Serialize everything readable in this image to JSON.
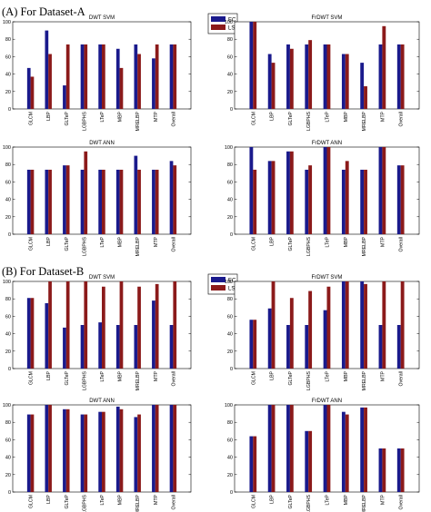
{
  "sections": [
    {
      "label": "(A)  For Dataset-A"
    },
    {
      "label": "(B)  For Dataset-B"
    }
  ],
  "legend": {
    "items": [
      "EC",
      "LS"
    ],
    "colors": [
      "#1a1a8c",
      "#8b1a1a"
    ]
  },
  "chart_data": [
    {
      "type": "bar",
      "title": "DWT SVM",
      "section": "A",
      "categories": [
        "GLCM",
        "LBP",
        "GLTeP",
        "LGBPHS",
        "LTeP",
        "MBP",
        "MRELBP",
        "MTP",
        "Overall"
      ],
      "series": [
        {
          "name": "EC",
          "values": [
            47,
            90,
            27,
            74,
            74,
            69,
            74,
            58,
            74
          ]
        },
        {
          "name": "LS",
          "values": [
            37,
            63,
            74,
            74,
            74,
            47,
            63,
            74,
            74
          ]
        }
      ],
      "ylim": [
        0,
        100
      ],
      "yticks": [
        0,
        20,
        40,
        60,
        80,
        100
      ]
    },
    {
      "type": "bar",
      "title": "FrDWT SVM",
      "section": "A",
      "categories": [
        "GLCM",
        "LBP",
        "GLTeP",
        "LGBPHS",
        "LTeP",
        "MBP",
        "MRELBP",
        "MTP",
        "Overall"
      ],
      "series": [
        {
          "name": "EC",
          "values": [
            100,
            63,
            74,
            74,
            74,
            63,
            53,
            74,
            74
          ]
        },
        {
          "name": "LS",
          "values": [
            100,
            53,
            69,
            79,
            74,
            63,
            26,
            95,
            74
          ]
        }
      ],
      "ylim": [
        0,
        100
      ],
      "yticks": [
        0,
        20,
        40,
        60,
        80,
        100
      ]
    },
    {
      "type": "bar",
      "title": "DWT ANN",
      "section": "A",
      "categories": [
        "GLCM",
        "LBP",
        "GLTeP",
        "LGBPHS",
        "LTeP",
        "MBP",
        "MRELBP",
        "MTP",
        "Overall"
      ],
      "series": [
        {
          "name": "EC",
          "values": [
            74,
            74,
            79,
            74,
            74,
            74,
            90,
            74,
            84
          ]
        },
        {
          "name": "LS",
          "values": [
            74,
            74,
            79,
            95,
            74,
            74,
            74,
            74,
            79
          ]
        }
      ],
      "ylim": [
        0,
        100
      ],
      "yticks": [
        0,
        20,
        40,
        60,
        80,
        100
      ]
    },
    {
      "type": "bar",
      "title": "FrDWT ANN",
      "section": "A",
      "categories": [
        "GLCM",
        "LBP",
        "GLTeP",
        "LGBPHS",
        "LTeP",
        "MBP",
        "MRELBP",
        "MTP",
        "Overall"
      ],
      "series": [
        {
          "name": "EC",
          "values": [
            100,
            84,
            95,
            74,
            100,
            74,
            74,
            100,
            79
          ]
        },
        {
          "name": "LS",
          "values": [
            74,
            84,
            95,
            79,
            100,
            84,
            74,
            100,
            79
          ]
        }
      ],
      "ylim": [
        0,
        100
      ],
      "yticks": [
        0,
        20,
        40,
        60,
        80,
        100
      ]
    },
    {
      "type": "bar",
      "title": "DWT SVM",
      "section": "B",
      "categories": [
        "GLCM",
        "LBP",
        "GLTeP",
        "LGBPHS",
        "LTeP",
        "MBP",
        "MRELBP",
        "MTP",
        "Overall"
      ],
      "series": [
        {
          "name": "EC",
          "values": [
            81,
            75,
            47,
            50,
            53,
            50,
            50,
            78,
            50
          ]
        },
        {
          "name": "LS",
          "values": [
            81,
            100,
            100,
            100,
            94,
            100,
            94,
            97,
            100
          ]
        }
      ],
      "ylim": [
        0,
        100
      ],
      "yticks": [
        0,
        20,
        40,
        60,
        80,
        100
      ]
    },
    {
      "type": "bar",
      "title": "FrDWT SVM",
      "section": "B",
      "categories": [
        "GLCM",
        "LBP",
        "GLTeP",
        "LGBPHS",
        "LTeP",
        "MBP",
        "MRELBP",
        "MTP",
        "Overall"
      ],
      "series": [
        {
          "name": "EC",
          "values": [
            56,
            69,
            50,
            50,
            67,
            100,
            100,
            50,
            50
          ]
        },
        {
          "name": "LS",
          "values": [
            56,
            100,
            81,
            89,
            94,
            100,
            97,
            100,
            100
          ]
        }
      ],
      "ylim": [
        0,
        100
      ],
      "yticks": [
        0,
        20,
        40,
        60,
        80,
        100
      ]
    },
    {
      "type": "bar",
      "title": "DWT ANN",
      "section": "B",
      "categories": [
        "GLCM",
        "LBP",
        "GLTeP",
        "LGBPHS",
        "LTeP",
        "MBP",
        "MRELBP",
        "MTP",
        "Overall"
      ],
      "series": [
        {
          "name": "EC",
          "values": [
            89,
            100,
            95,
            89,
            92,
            98,
            86,
            100,
            100
          ]
        },
        {
          "name": "LS",
          "values": [
            89,
            100,
            95,
            89,
            92,
            95,
            89,
            100,
            100
          ]
        }
      ],
      "ylim": [
        0,
        100
      ],
      "yticks": [
        0,
        20,
        40,
        60,
        80,
        100
      ]
    },
    {
      "type": "bar",
      "title": "FrDWT ANN",
      "section": "B",
      "categories": [
        "GLCM",
        "LBP",
        "GLTeP",
        "LGBPHS",
        "LTeP",
        "MBP",
        "MRELBP",
        "MTP",
        "Overall"
      ],
      "series": [
        {
          "name": "EC",
          "values": [
            64,
            100,
            100,
            70,
            100,
            92,
            97,
            50,
            50
          ]
        },
        {
          "name": "LS",
          "values": [
            64,
            100,
            100,
            70,
            100,
            89,
            97,
            50,
            50
          ]
        }
      ],
      "ylim": [
        0,
        100
      ],
      "yticks": [
        0,
        20,
        40,
        60,
        80,
        100
      ]
    }
  ]
}
